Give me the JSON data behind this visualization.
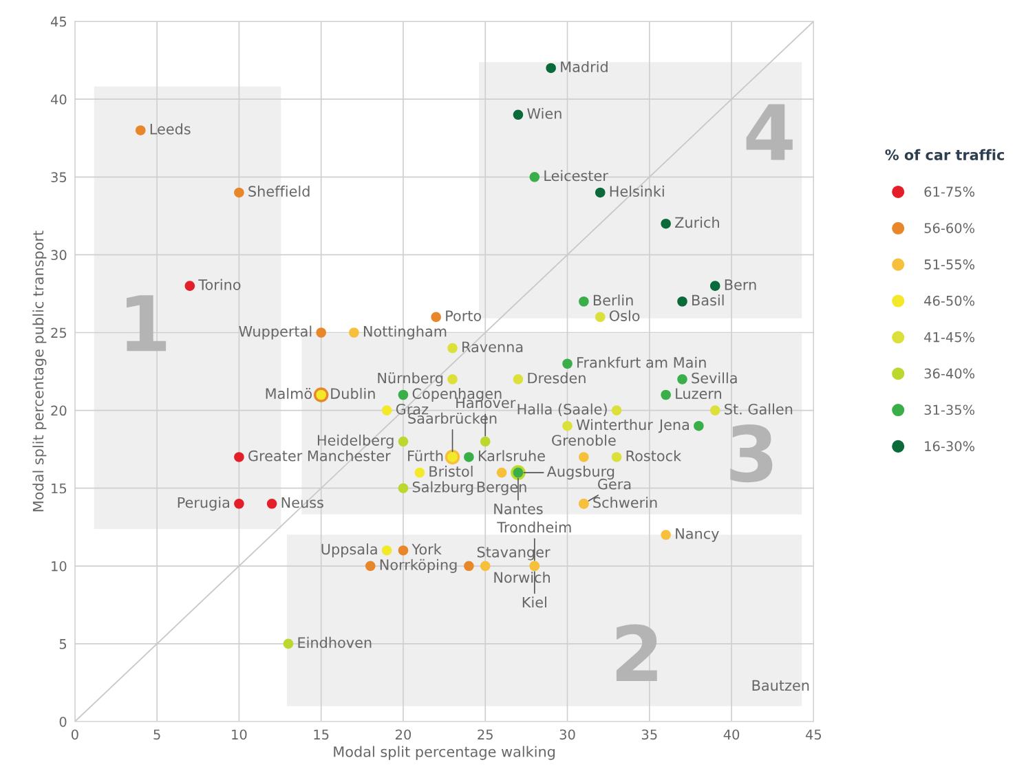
{
  "chart_data": {
    "type": "scatter",
    "xlabel": "Modal split percentage walking",
    "ylabel": "Modal split percentage public transport",
    "legend_title": "% of car traffic",
    "legend": "right",
    "grid": true,
    "marker": "circle",
    "xlim": [
      0,
      45
    ],
    "ylim": [
      0,
      45
    ],
    "xticks": [
      0,
      5,
      10,
      15,
      20,
      25,
      30,
      35,
      40,
      45
    ],
    "yticks": [
      0,
      5,
      10,
      15,
      20,
      25,
      30,
      35,
      40,
      45
    ],
    "series": [
      {
        "type": "line",
        "color": "#c8c8c8",
        "marker": "none",
        "x": [
          0,
          45
        ],
        "values": [
          0,
          45
        ]
      },
      {
        "name": "61-75%",
        "color": "#e3202a",
        "x": [
          7,
          10,
          10,
          12
        ],
        "values": [
          28,
          17,
          14,
          14
        ],
        "value_labels": [
          "Torino",
          "Greater Manchester",
          "Perugia",
          "Neuss"
        ]
      },
      {
        "name": "56-60%",
        "color": "#e8872a",
        "x": [
          4,
          10,
          22,
          15,
          15,
          20,
          18,
          24
        ],
        "values": [
          38,
          34,
          26,
          25,
          21,
          11,
          10,
          10
        ],
        "value_labels": [
          "Leeds",
          "Sheffield",
          "Porto",
          "Wuppertal",
          "Dublin",
          "York",
          "Norrköping",
          "Stavanger"
        ]
      },
      {
        "name": "51-55%",
        "color": "#f7c03c",
        "x": [
          17,
          23,
          26,
          31,
          31,
          31,
          36,
          25,
          28,
          28
        ],
        "values": [
          25,
          17,
          16,
          17,
          14,
          14,
          12,
          10,
          10,
          10
        ],
        "value_labels": [
          "Nottingham",
          "Saarbrücken",
          "Bergen",
          "Grenoble",
          "Schwerin",
          "Gera",
          "Nancy",
          "Norwich",
          "Trondheim",
          "Kiel"
        ]
      },
      {
        "name": "46-50%",
        "color": "#f3e82a",
        "x": [
          15,
          19,
          23,
          21,
          19
        ],
        "values": [
          21,
          20,
          17,
          16,
          11
        ],
        "value_labels": [
          "Malmö",
          "Graz",
          "Fürth",
          "Bristol",
          "Uppsala"
        ]
      },
      {
        "name": "41-45%",
        "color": "#dbe03a",
        "x": [
          32,
          23,
          23,
          27,
          33,
          30,
          33,
          39
        ],
        "values": [
          26,
          24,
          22,
          22,
          20,
          19,
          17,
          20
        ],
        "value_labels": [
          "Oslo",
          "Ravenna",
          "Nürnberg",
          "Dresden",
          "Halla (Saale)",
          "Winterthur",
          "Rostock",
          "St. Gallen"
        ]
      },
      {
        "name": "36-40%",
        "color": "#bcd72e",
        "x": [
          25,
          20,
          20,
          27,
          13
        ],
        "values": [
          18,
          18,
          15,
          16,
          5
        ],
        "value_labels": [
          "Hanover",
          "Heidelberg",
          "Salzburg",
          "Nantes",
          "Eindhoven"
        ]
      },
      {
        "name": "31-35%",
        "color": "#3aae48",
        "x": [
          28,
          31,
          30,
          37,
          36,
          38,
          20,
          24,
          27
        ],
        "values": [
          35,
          27,
          23,
          22,
          21,
          19,
          21,
          17,
          16
        ],
        "value_labels": [
          "Leicester",
          "Berlin",
          "Frankfurt am Main",
          "Sevilla",
          "Luzern",
          "Jena",
          "Copenhagen",
          "Karlsruhe",
          "Augsburg"
        ]
      },
      {
        "name": "16-30%",
        "color": "#0b6a3a",
        "x": [
          29,
          27,
          32,
          36,
          39,
          37
        ],
        "values": [
          42,
          39,
          34,
          32,
          28,
          27
        ],
        "value_labels": [
          "Madrid",
          "Wien",
          "Helsinki",
          "Zurich",
          "Bern",
          "Basil"
        ]
      }
    ],
    "annotations": [
      "1",
      "2",
      "3",
      "4",
      "Bautzen"
    ]
  }
}
